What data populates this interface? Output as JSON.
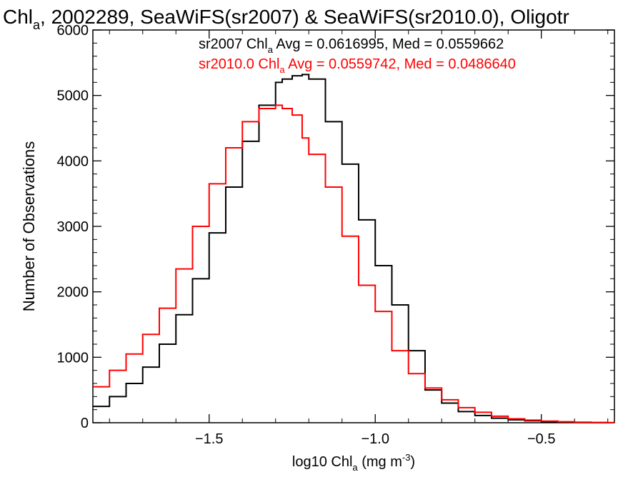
{
  "chart_data": {
    "type": "line",
    "title": {
      "pre": "Chl",
      "sub": "a",
      "post": ", 2002289, SeaWiFS(sr2007) & SeaWiFS(sr2010.0), Oligotr"
    },
    "xlabel": {
      "pre": "log10 Chl",
      "sub": "a",
      "mid": " (mg m",
      "sup": "-3",
      "post": ")"
    },
    "ylabel": "Number of Observations",
    "xlim": [
      -1.85,
      -0.28
    ],
    "ylim": [
      0,
      6000
    ],
    "x_ticks": [
      -1.5,
      -1.0,
      -0.5
    ],
    "x_tick_labels": [
      "−1.5",
      "−1.0",
      "−0.5"
    ],
    "y_ticks": [
      0,
      1000,
      2000,
      3000,
      4000,
      5000,
      6000
    ],
    "y_tick_labels": [
      "0",
      "1000",
      "2000",
      "3000",
      "4000",
      "5000",
      "6000"
    ],
    "annotations": [
      {
        "pre": "sr2007 Chl",
        "sub": "a",
        "post": " Avg = 0.0616995, Med = 0.0559662",
        "color": "#000000"
      },
      {
        "pre": "sr2010.0 Chl",
        "sub": "a",
        "post": " Avg = 0.0559742, Med = 0.0486640",
        "color": "#ff0000"
      }
    ],
    "series": [
      {
        "color": "#000000",
        "x": [
          -1.85,
          -1.8,
          -1.75,
          -1.7,
          -1.65,
          -1.6,
          -1.55,
          -1.5,
          -1.45,
          -1.4,
          -1.35,
          -1.3,
          -1.28,
          -1.25,
          -1.22,
          -1.2,
          -1.15,
          -1.1,
          -1.05,
          -1.0,
          -0.95,
          -0.9,
          -0.85,
          -0.8,
          -0.75,
          -0.7,
          -0.65,
          -0.6,
          -0.55,
          -0.5,
          -0.45,
          -0.4,
          -0.35,
          -0.3
        ],
        "y": [
          250,
          400,
          600,
          850,
          1200,
          1650,
          2200,
          2900,
          3600,
          4300,
          4850,
          5200,
          5250,
          5300,
          5320,
          5250,
          4600,
          3950,
          3100,
          2400,
          1800,
          1100,
          500,
          300,
          170,
          110,
          70,
          45,
          30,
          15,
          8,
          4,
          2,
          1
        ]
      },
      {
        "color": "#ff0000",
        "x": [
          -1.85,
          -1.8,
          -1.75,
          -1.7,
          -1.65,
          -1.6,
          -1.55,
          -1.5,
          -1.45,
          -1.4,
          -1.35,
          -1.3,
          -1.28,
          -1.25,
          -1.22,
          -1.2,
          -1.15,
          -1.1,
          -1.05,
          -1.0,
          -0.95,
          -0.9,
          -0.85,
          -0.8,
          -0.75,
          -0.7,
          -0.65,
          -0.6,
          -0.55,
          -0.5,
          -0.45,
          -0.4,
          -0.35,
          -0.3
        ],
        "y": [
          550,
          800,
          1050,
          1350,
          1750,
          2350,
          3000,
          3650,
          4200,
          4600,
          4800,
          4850,
          4800,
          4700,
          4350,
          4100,
          3600,
          2850,
          2100,
          1700,
          1100,
          750,
          530,
          350,
          230,
          160,
          100,
          60,
          40,
          25,
          15,
          8,
          4,
          2
        ]
      }
    ],
    "grid": false,
    "legend": "none"
  }
}
